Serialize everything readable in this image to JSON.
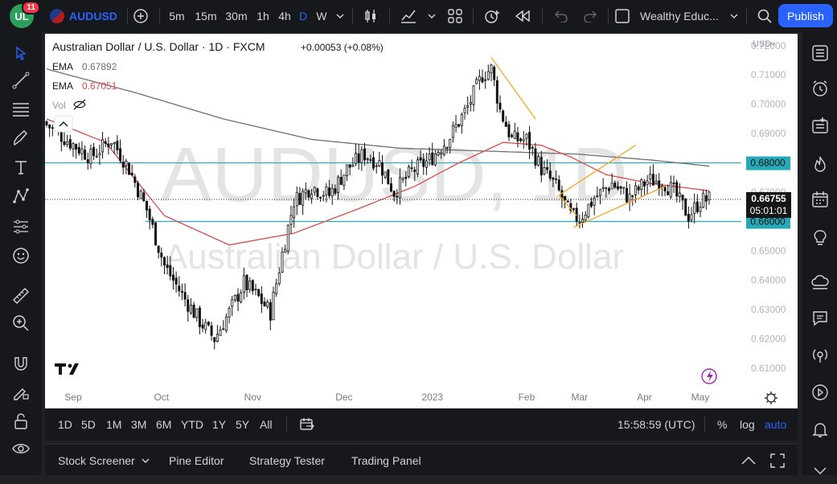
{
  "topbar": {
    "avatar_initials": "UL",
    "notification_count": "11",
    "symbol": "AUDUSD",
    "timeframes": [
      "5m",
      "15m",
      "30m",
      "1h",
      "4h",
      "D",
      "W"
    ],
    "active_timeframe": "D",
    "layout_name": "Wealthy Educ...",
    "publish_label": "Publish"
  },
  "legend": {
    "title": "Australian Dollar / U.S. Dollar · 1D · FXCM",
    "change": "+0.00053 (+0.08%)",
    "ema1_label": "EMA",
    "ema1_value": "0.67892",
    "ema2_label": "EMA",
    "ema2_value": "0.67051",
    "vol_label": "Vol"
  },
  "watermark": {
    "symbol": "AUDUSD, 1D",
    "name": "Australian Dollar / U.S. Dollar"
  },
  "price_axis": {
    "currency": "USD",
    "ticks": [
      "0.72000",
      "0.71000",
      "0.70000",
      "0.69000",
      "0.68000",
      "0.67000",
      "0.66000",
      "0.65000",
      "0.64000",
      "0.63000",
      "0.62000",
      "0.61000"
    ],
    "current_price": "0.66755",
    "countdown": "05:01:01",
    "level_high": "0.68000",
    "level_low": "0.66000"
  },
  "time_axis": {
    "labels": [
      "Sep",
      "Oct",
      "Nov",
      "Dec",
      "2023",
      "Feb",
      "Mar",
      "Apr",
      "May"
    ]
  },
  "bottombar": {
    "ranges": [
      "1D",
      "5D",
      "1M",
      "3M",
      "6M",
      "YTD",
      "1Y",
      "5Y",
      "All"
    ],
    "clock": "15:58:59 (UTC)",
    "percent_label": "%",
    "log_label": "log",
    "auto_label": "auto"
  },
  "panels": {
    "items": [
      "Stock Screener",
      "Pine Editor",
      "Strategy Tester",
      "Trading Panel"
    ]
  },
  "colors": {
    "accent": "#2962ff",
    "ema_fast": "#d84a4a",
    "ema_slow": "#6f6f6f",
    "level_line": "#26a9b8",
    "trendline": "#f5a623",
    "candle": "#111111"
  },
  "chart_data": {
    "type": "candlestick",
    "symbol": "AUDUSD",
    "interval": "1D",
    "ylim": [
      0.605,
      0.7235
    ],
    "x_labels": [
      "Sep",
      "Oct",
      "Nov",
      "Dec",
      "2023",
      "Feb",
      "Mar",
      "Apr",
      "May"
    ],
    "horizontal_levels": [
      0.68,
      0.66
    ],
    "current_price": 0.66755,
    "anchors_close": [
      [
        0,
        0.693
      ],
      [
        8,
        0.687
      ],
      [
        15,
        0.682
      ],
      [
        22,
        0.688
      ],
      [
        28,
        0.678
      ],
      [
        34,
        0.664
      ],
      [
        40,
        0.645
      ],
      [
        46,
        0.635
      ],
      [
        52,
        0.626
      ],
      [
        57,
        0.62
      ],
      [
        62,
        0.629
      ],
      [
        67,
        0.639
      ],
      [
        72,
        0.634
      ],
      [
        76,
        0.629
      ],
      [
        80,
        0.649
      ],
      [
        84,
        0.667
      ],
      [
        90,
        0.672
      ],
      [
        96,
        0.669
      ],
      [
        102,
        0.678
      ],
      [
        108,
        0.683
      ],
      [
        113,
        0.68
      ],
      [
        118,
        0.67
      ],
      [
        124,
        0.677
      ],
      [
        130,
        0.681
      ],
      [
        137,
        0.689
      ],
      [
        143,
        0.699
      ],
      [
        148,
        0.71
      ],
      [
        151,
        0.712
      ],
      [
        154,
        0.698
      ],
      [
        158,
        0.688
      ],
      [
        163,
        0.688
      ],
      [
        168,
        0.678
      ],
      [
        173,
        0.672
      ],
      [
        178,
        0.662
      ],
      [
        181,
        0.661
      ],
      [
        186,
        0.668
      ],
      [
        192,
        0.673
      ],
      [
        198,
        0.668
      ],
      [
        204,
        0.674
      ],
      [
        209,
        0.674
      ],
      [
        213,
        0.67
      ],
      [
        218,
        0.662
      ],
      [
        222,
        0.667
      ],
      [
        225,
        0.6676
      ]
    ],
    "ema_fast_points": [
      [
        0,
        0.695
      ],
      [
        20,
        0.687
      ],
      [
        40,
        0.662
      ],
      [
        62,
        0.652
      ],
      [
        84,
        0.656
      ],
      [
        105,
        0.664
      ],
      [
        125,
        0.672
      ],
      [
        140,
        0.68
      ],
      [
        155,
        0.687
      ],
      [
        168,
        0.686
      ],
      [
        178,
        0.682
      ],
      [
        190,
        0.676
      ],
      [
        205,
        0.673
      ],
      [
        225,
        0.6705
      ]
    ],
    "ema_slow_points": [
      [
        0,
        0.712
      ],
      [
        30,
        0.704
      ],
      [
        60,
        0.695
      ],
      [
        90,
        0.688
      ],
      [
        120,
        0.685
      ],
      [
        150,
        0.684
      ],
      [
        180,
        0.683
      ],
      [
        205,
        0.681
      ],
      [
        225,
        0.6789
      ]
    ],
    "trendlines": [
      {
        "from": [
          151,
          0.716
        ],
        "to": [
          166,
          0.695
        ]
      },
      {
        "from": [
          174,
          0.669
        ],
        "to": [
          200,
          0.686
        ]
      },
      {
        "from": [
          179,
          0.658
        ],
        "to": [
          210,
          0.672
        ]
      },
      {
        "from": [
          174,
          0.669
        ],
        "to": [
          180,
          0.662
        ]
      }
    ]
  }
}
